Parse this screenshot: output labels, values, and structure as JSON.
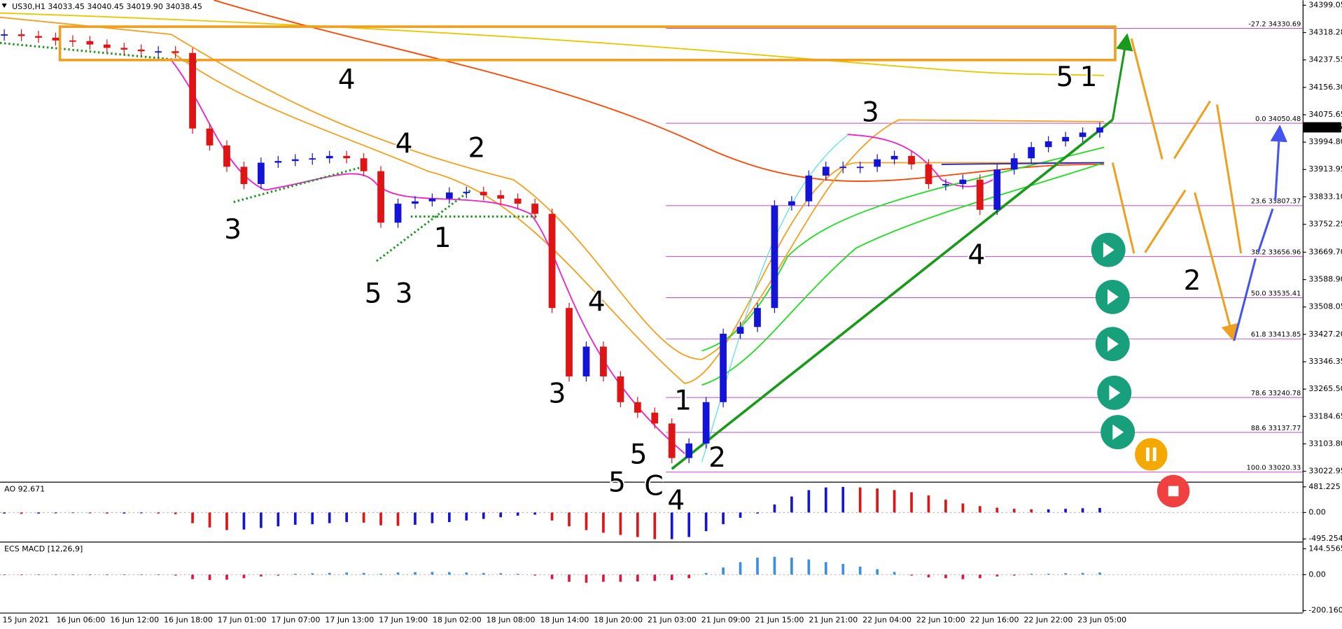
{
  "header": "US30,H1  34033.45 34040.45 34019.90 34038.45",
  "chart_data": [
    {
      "type": "candlestick",
      "values": [
        34313,
        34308,
        34303,
        34295,
        34293,
        34283,
        34273,
        34268,
        34263,
        34263,
        34258,
        34035,
        33985,
        33922,
        33871,
        33934,
        33939,
        33944,
        33947,
        33954,
        33947,
        33909,
        33757,
        33813,
        33820,
        33828,
        33846,
        33848,
        33838,
        33828,
        33813,
        33783,
        33505,
        33303,
        33391,
        33303,
        33227,
        33196,
        33164,
        33062,
        33105,
        33227,
        33429,
        33449,
        33505,
        33808,
        33820,
        33896,
        33922,
        33922,
        33922,
        33944,
        33954,
        33929,
        33871,
        33871,
        33884,
        33795,
        33914,
        33947,
        33980,
        33997,
        34010,
        34023,
        34038
      ],
      "up_color": "#1414d8",
      "down_color": "#e01414",
      "ylim": [
        32992,
        34414
      ],
      "yticks": [
        34399.05,
        34318.28,
        34237.55,
        {
          "value": 34156.3,
          "label": "34156.30"
        },
        34075.65,
        {
          "value": 33994.8,
          "label": "33994.80"
        },
        33913.95,
        {
          "value": 33833.1,
          "label": "33833.10"
        },
        33752.25,
        {
          "value": 33669.7,
          "label": "33669.70"
        },
        {
          "value": 33588.9,
          "label": "33588.90"
        },
        33508.05,
        {
          "value": 33427.2,
          "label": "33427.20"
        },
        33346.35,
        {
          "value": 33265.5,
          "label": "33265.50"
        },
        33184.65,
        {
          "value": 33103.8,
          "label": "33103.80"
        },
        33022.95
      ],
      "fib_levels": [
        {
          "value": 34330.69,
          "label": "-27.2 34330.69"
        },
        {
          "value": 34050.48,
          "label": "0.0 34050.48"
        },
        {
          "value": 33807.37,
          "label": "23.6 33807.37"
        },
        {
          "value": 33656.96,
          "label": "38.2 33656.96"
        },
        {
          "value": 33535.41,
          "label": "50.0 33535.41"
        },
        {
          "value": 33413.85,
          "label": "61.8 33413.85"
        },
        {
          "value": 33240.78,
          "label": "78.6 33240.78"
        },
        {
          "value": 33137.77,
          "label": "88.6 33137.77"
        },
        {
          "value": 33020.33,
          "label": "100.0 33020.33"
        }
      ],
      "fib_color": "#cc44cc",
      "last_price": 34038.45
    },
    {
      "type": "histogram",
      "title": "AO 92.671",
      "values": [
        -20,
        -25,
        -20,
        -15,
        -10,
        -15,
        -20,
        -20,
        -15,
        -20,
        -30,
        -200,
        -280,
        -330,
        -320,
        -290,
        -260,
        -230,
        -220,
        -200,
        -180,
        -190,
        -240,
        -250,
        -230,
        -200,
        -180,
        -150,
        -120,
        -90,
        -60,
        -40,
        -150,
        -260,
        -330,
        -380,
        -420,
        -460,
        -500,
        -500,
        -460,
        -350,
        -220,
        -100,
        -20,
        150,
        300,
        420,
        470,
        480,
        470,
        450,
        420,
        380,
        320,
        240,
        170,
        120,
        90,
        70,
        60,
        60,
        70,
        80,
        85
      ],
      "color_by": "change",
      "up_color": "#1414d8",
      "down_color": "#e01414",
      "ylim": [
        -530,
        545
      ],
      "yticks": [
        481.225,
        {
          "value": 0,
          "label": "0.00"
        },
        -495.254
      ]
    },
    {
      "type": "histogram",
      "title": "ECS MACD [12,26,9]",
      "values": [
        -3,
        -3,
        -2,
        -2,
        -2,
        -3,
        -3,
        -2,
        -2,
        -2,
        -5,
        -25,
        -30,
        -28,
        -20,
        -10,
        -5,
        5,
        8,
        10,
        12,
        10,
        5,
        12,
        14,
        15,
        14,
        12,
        10,
        8,
        5,
        -5,
        -25,
        -40,
        -45,
        -40,
        -40,
        -38,
        -35,
        -30,
        -20,
        10,
        40,
        70,
        95,
        100,
        95,
        85,
        70,
        60,
        45,
        30,
        15,
        -5,
        -15,
        -20,
        -25,
        -20,
        -10,
        -5,
        5,
        5,
        8,
        10,
        12
      ],
      "color_by": "sign",
      "up_color": "#3a8ee6",
      "down_color": "#e0143c",
      "ylim": [
        -212,
        175
      ],
      "yticks": [
        144.5565,
        {
          "value": 0,
          "label": "0.00"
        },
        -200.1602
      ]
    }
  ],
  "time_labels": [
    "15 Jun 2021",
    "16 Jun 06:00",
    "16 Jun 12:00",
    "16 Jun 18:00",
    "17 Jun 01:00",
    "17 Jun 07:00",
    "17 Jun 13:00",
    "17 Jun 19:00",
    "18 Jun 02:00",
    "18 Jun 08:00",
    "18 Jun 14:00",
    "18 Jun 20:00",
    "21 Jun 03:00",
    "21 Jun 09:00",
    "21 Jun 15:00",
    "21 Jun 21:00",
    "22 Jun 04:00",
    "22 Jun 10:00",
    "22 Jun 16:00",
    "22 Jun 22:00",
    "23 Jun 05:00"
  ],
  "wave_labels": [
    {
      "text": "4",
      "color": "#33d0ee"
    },
    {
      "text": "3",
      "color": "#33d0ee"
    },
    {
      "text": "5",
      "color": "#33d0ee"
    },
    {
      "text": "3",
      "color": "#f0a020"
    },
    {
      "text": "4",
      "color": "#f0a020"
    },
    {
      "text": "2",
      "color": "#33d0ee"
    },
    {
      "text": "1",
      "color": "#33d0ee"
    },
    {
      "text": "4",
      "color": "#33d0ee"
    },
    {
      "text": "3",
      "color": "#33d0ee"
    },
    {
      "text": "1",
      "color": "#33d0ee"
    },
    {
      "text": "5",
      "color": "#33d0ee"
    },
    {
      "text": "2",
      "color": "#33d0ee"
    },
    {
      "text": "5",
      "color": "#f0a020"
    },
    {
      "text": "C",
      "color": "#1a9a1a"
    },
    {
      "text": "4",
      "color": "#999999"
    },
    {
      "text": "3",
      "color": "#33d0ee"
    },
    {
      "text": "4",
      "color": "#33d0ee"
    },
    {
      "text": "5",
      "color": "#33d0ee"
    },
    {
      "text": "1",
      "color": "#1a9a1a"
    },
    {
      "text": "2",
      "color": "#1a9a1a"
    }
  ]
}
